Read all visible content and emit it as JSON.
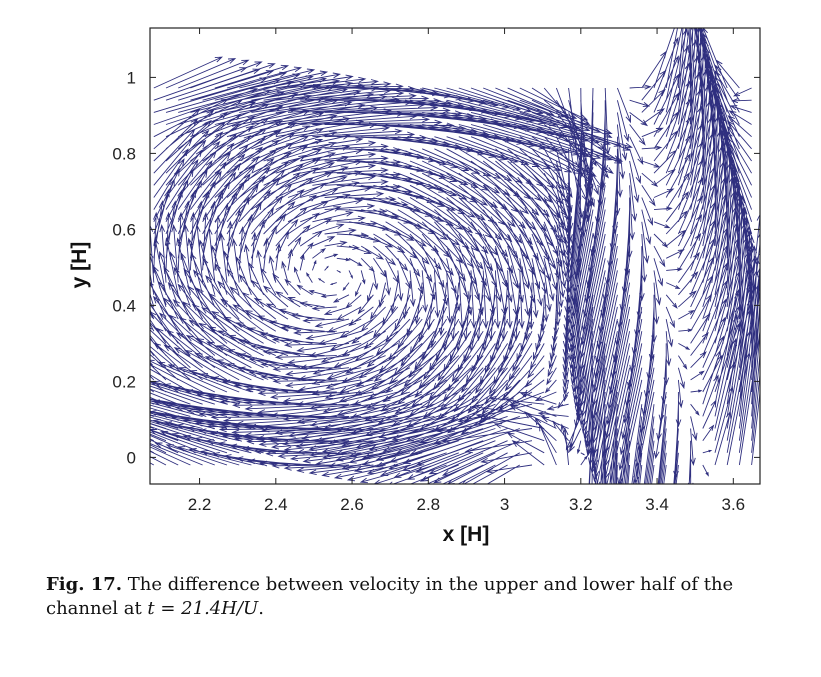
{
  "chart_data": {
    "type": "quiver",
    "xlabel": "x [H]",
    "ylabel": "y [H]",
    "xlim": [
      2.07,
      3.67
    ],
    "ylim": [
      -0.07,
      1.13
    ],
    "xticks": [
      "2.2",
      "2.4",
      "2.6",
      "2.8",
      "3",
      "3.2",
      "3.4",
      "3.6"
    ],
    "yticks": [
      "0",
      "0.2",
      "0.4",
      "0.6",
      "0.8",
      "1"
    ],
    "arrow_color": "#2f2f7f",
    "grid": false,
    "field": {
      "description": "velocity difference field with a clockwise vortex centred near (2.55, 0.48) and strong disturbance near x=3.2-3.6",
      "vortex_center": [
        2.55,
        0.48
      ],
      "disturbance_x_range": [
        3.1,
        3.6
      ]
    }
  },
  "caption": {
    "label": "Fig. 17.",
    "text_before": "The difference between velocity in the upper and lower half of the channel at",
    "math": "t = 21.4H/U",
    "text_after": "."
  }
}
